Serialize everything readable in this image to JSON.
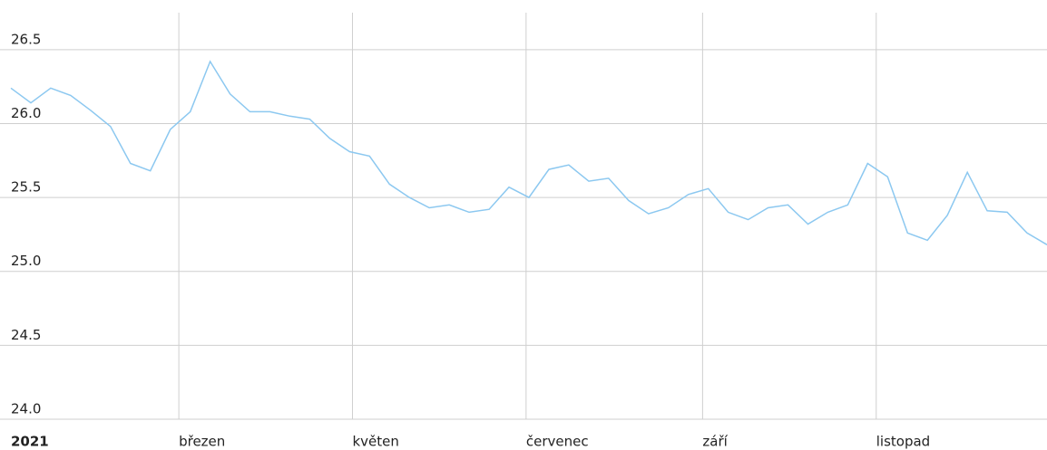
{
  "chart_data": {
    "type": "line",
    "x": [
      0,
      7,
      14,
      21,
      28,
      35,
      42,
      49,
      56,
      63,
      70,
      77,
      84,
      91,
      98,
      105,
      112,
      119,
      126,
      133,
      140,
      147,
      154,
      161,
      168,
      175,
      182,
      189,
      196,
      203,
      210,
      217,
      224,
      231,
      238,
      245,
      252,
      259,
      266,
      273,
      280,
      287,
      294,
      301,
      308,
      315,
      322,
      329,
      336,
      343,
      350,
      357,
      364
    ],
    "series": [
      {
        "color": "#8cc8f0",
        "values": [
          26.24,
          26.14,
          26.24,
          26.19,
          26.09,
          25.98,
          25.73,
          25.68,
          25.96,
          26.08,
          26.42,
          26.2,
          26.08,
          26.08,
          26.05,
          26.03,
          25.9,
          25.81,
          25.78,
          25.59,
          25.5,
          25.43,
          25.45,
          25.4,
          25.42,
          25.57,
          25.5,
          25.69,
          25.72,
          25.61,
          25.63,
          25.48,
          25.39,
          25.43,
          25.52,
          25.56,
          25.4,
          25.35,
          25.43,
          25.45,
          25.32,
          25.4,
          25.45,
          25.73,
          25.64,
          25.26,
          25.21,
          25.38,
          25.67,
          25.41,
          25.4,
          25.26,
          25.18
        ]
      }
    ],
    "xlim": [
      0,
      364
    ],
    "xticks": [
      {
        "value": 0,
        "label": "2021"
      },
      {
        "value": 59,
        "label": "březen"
      },
      {
        "value": 120,
        "label": "květen"
      },
      {
        "value": 181,
        "label": "červenec"
      },
      {
        "value": 243,
        "label": "září"
      },
      {
        "value": 304,
        "label": "listopad"
      }
    ],
    "ylim": [
      24,
      26.75
    ],
    "yticks": [
      {
        "value": 24,
        "label": "24.0"
      },
      24.5,
      {
        "value": 25,
        "label": "25.0"
      },
      25.5,
      {
        "value": 26,
        "label": "26.0"
      },
      26.5
    ],
    "grid": true
  }
}
